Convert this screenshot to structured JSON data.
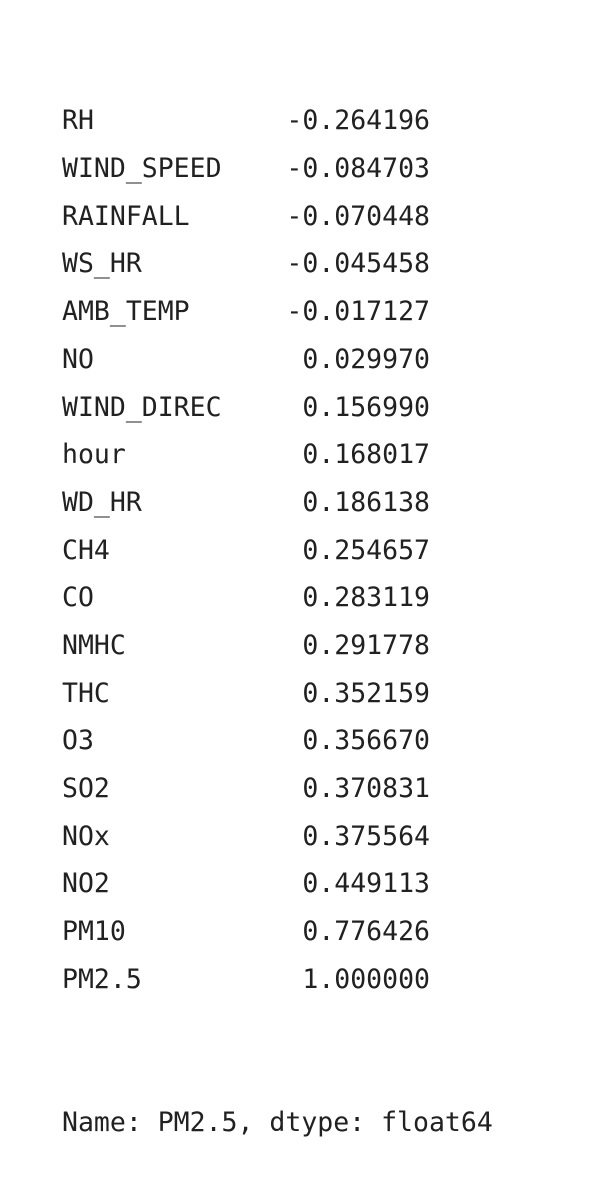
{
  "series": {
    "rows": [
      {
        "label": "RH",
        "value": "-0.264196"
      },
      {
        "label": "WIND_SPEED",
        "value": "-0.084703"
      },
      {
        "label": "RAINFALL",
        "value": "-0.070448"
      },
      {
        "label": "WS_HR",
        "value": "-0.045458"
      },
      {
        "label": "AMB_TEMP",
        "value": "-0.017127"
      },
      {
        "label": "NO",
        "value": "0.029970"
      },
      {
        "label": "WIND_DIREC",
        "value": "0.156990"
      },
      {
        "label": "hour",
        "value": "0.168017"
      },
      {
        "label": "WD_HR",
        "value": "0.186138"
      },
      {
        "label": "CH4",
        "value": "0.254657"
      },
      {
        "label": "CO",
        "value": "0.283119"
      },
      {
        "label": "NMHC",
        "value": "0.291778"
      },
      {
        "label": "THC",
        "value": "0.352159"
      },
      {
        "label": "O3",
        "value": "0.356670"
      },
      {
        "label": "SO2",
        "value": "0.370831"
      },
      {
        "label": "NOx",
        "value": "0.375564"
      },
      {
        "label": "NO2",
        "value": "0.449113"
      },
      {
        "label": "PM10",
        "value": "0.776426"
      },
      {
        "label": "PM2.5",
        "value": "1.000000"
      }
    ],
    "footer": "Name: PM2.5, dtype: float64"
  }
}
